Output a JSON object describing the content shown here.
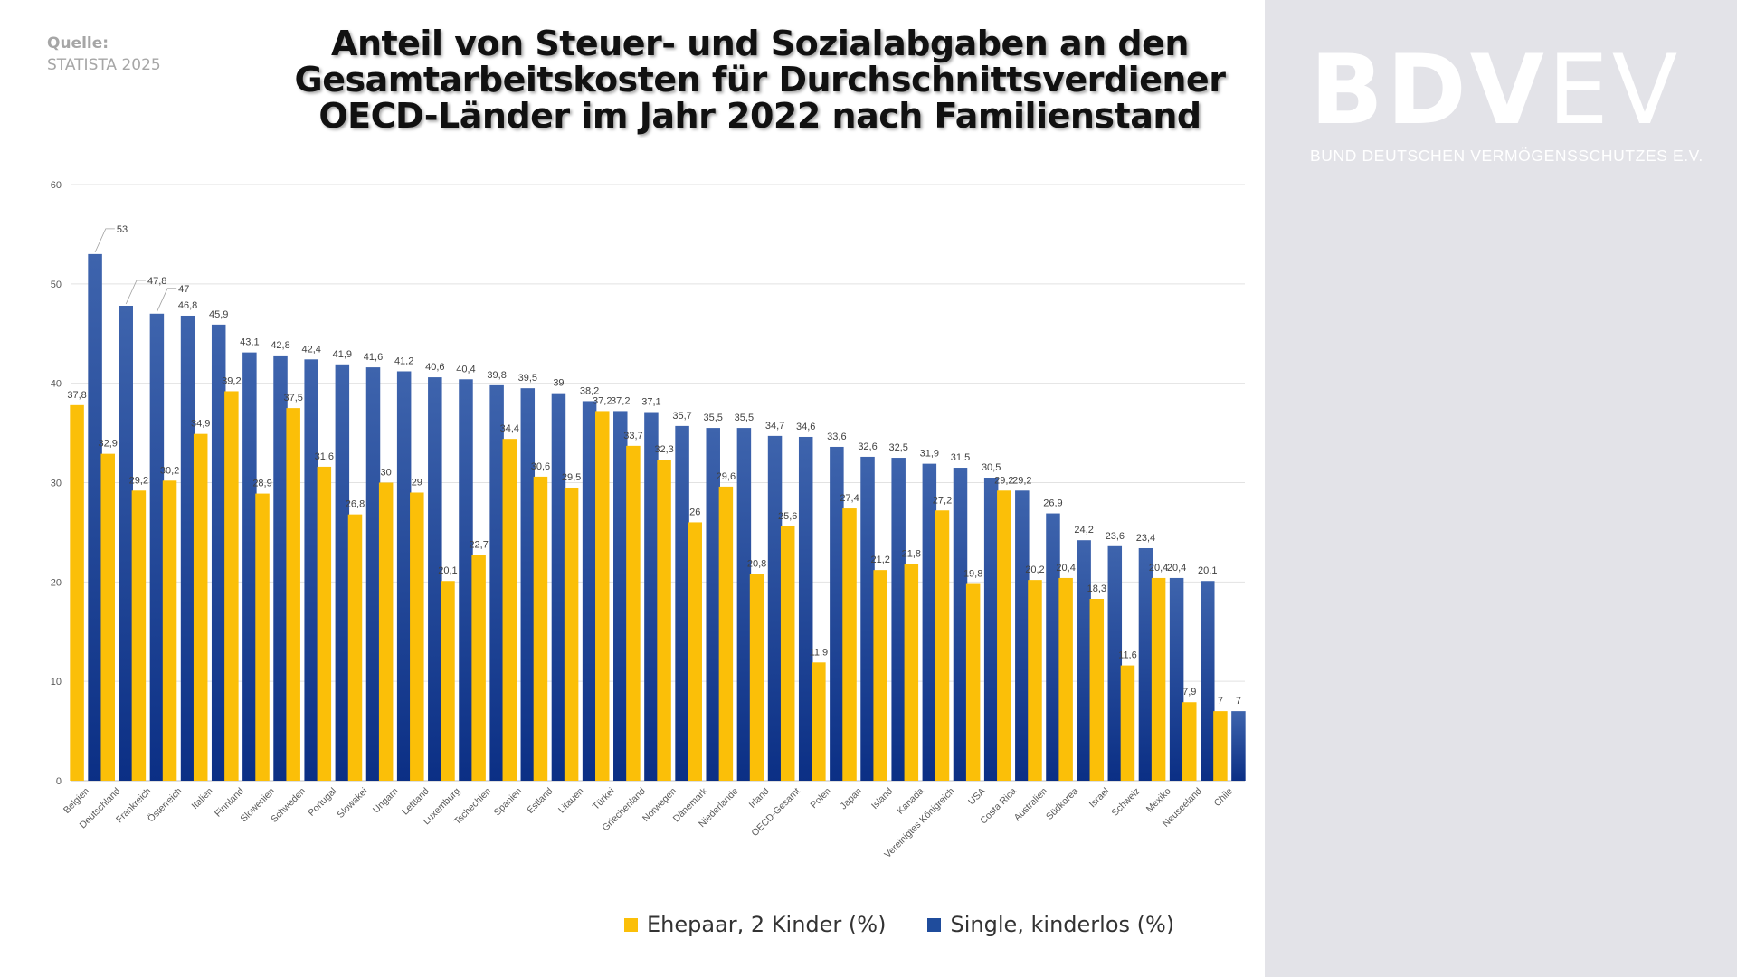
{
  "source": {
    "label": "Quelle:",
    "value": "STATISTA 2025"
  },
  "title": [
    "Anteil von Steuer- und Sozialabgaben an den",
    "Gesamtarbeitskosten für Durchschnittsverdiener",
    "OECD-Länder im Jahr 2022 nach Familienstand"
  ],
  "logo": {
    "bold_text": "BDV",
    "thin_text": "EV",
    "subtitle": "BUND DEUTSCHEN VERMÖGENSSCHUTZES E.V."
  },
  "colors": {
    "married": "#fbbf08",
    "single": "#1f4c9c",
    "panel": "#e3e3e8",
    "grid": "#e2e2e2"
  },
  "chart_data": {
    "type": "bar",
    "categories": [
      "Belgien",
      "Deutschland",
      "Frankreich",
      "Österreich",
      "Italien",
      "Finnland",
      "Slowenien",
      "Schweden",
      "Portugal",
      "Slowakei",
      "Ungarn",
      "Lettland",
      "Luxemburg",
      "Tschechien",
      "Spanien",
      "Estland",
      "Litauen",
      "Türkei",
      "Griechenland",
      "Norwegen",
      "Dänemark",
      "Niederlande",
      "Irland",
      "OECD-Gesamt",
      "Polen",
      "Japan",
      "Island",
      "Kanada",
      "Vereinigtes Königreich",
      "USA",
      "Costa Rica",
      "Australien",
      "Südkorea",
      "Israel",
      "Schweiz",
      "Mexiko",
      "Neuseeland",
      "Chile"
    ],
    "series": [
      {
        "name": "Ehepaar, 2 Kinder (%)",
        "values": [
          37.8,
          32.9,
          29.2,
          30.2,
          34.9,
          39.2,
          28.9,
          37.5,
          31.6,
          26.8,
          30,
          29,
          20.1,
          22.7,
          34.4,
          30.6,
          29.5,
          37.2,
          33.7,
          32.3,
          26,
          29.6,
          20.8,
          25.6,
          11.9,
          27.4,
          21.2,
          21.8,
          27.2,
          19.8,
          29.2,
          20.2,
          20.4,
          18.3,
          11.6,
          20.4,
          7.9,
          7
        ]
      },
      {
        "name": "Single, kinderlos (%)",
        "values": [
          53,
          47.8,
          47,
          46.8,
          45.9,
          43.1,
          42.8,
          42.4,
          41.9,
          41.6,
          41.2,
          40.6,
          40.4,
          39.8,
          39.5,
          39,
          38.2,
          37.2,
          37.1,
          35.7,
          35.5,
          35.5,
          34.7,
          34.6,
          33.6,
          32.6,
          32.5,
          31.9,
          31.5,
          30.5,
          29.2,
          26.9,
          24.2,
          23.6,
          23.4,
          20.4,
          20.1,
          7
        ]
      }
    ],
    "ylim": [
      0,
      60
    ],
    "yticks": [
      0,
      10,
      20,
      30,
      40,
      50,
      60
    ],
    "grid": true,
    "legend_position": "bottom"
  }
}
